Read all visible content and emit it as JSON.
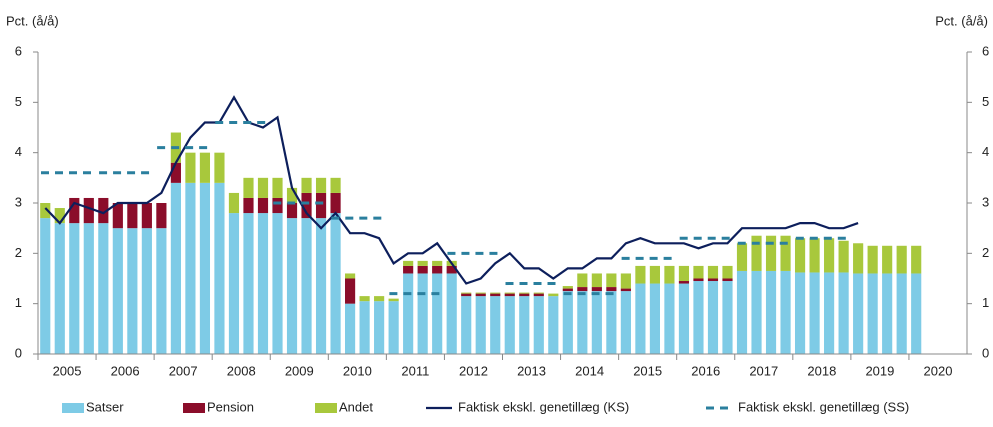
{
  "chart_data": {
    "type": "stacked_bar_line",
    "y_label": "Pct. (å/å)",
    "categories": [
      "2005",
      "2006",
      "2007",
      "2008",
      "2009",
      "2010",
      "2011",
      "2012",
      "2013",
      "2014",
      "2015",
      "2016",
      "2017",
      "2018",
      "2019",
      "2020"
    ],
    "ylim": [
      0,
      6
    ],
    "yticks": [
      0,
      1,
      2,
      3,
      4,
      5,
      6
    ],
    "grid": false,
    "legend": "bottom",
    "series": [
      {
        "name": "Satser",
        "kind": "bar",
        "color": "#7ecbe6",
        "values": [
          [
            2.7,
            2.6,
            2.6,
            2.6
          ],
          [
            2.6,
            2.5,
            2.5,
            2.5
          ],
          [
            2.5,
            3.4,
            3.4,
            3.4
          ],
          [
            3.4,
            2.8,
            2.8,
            2.8
          ],
          [
            2.8,
            2.7,
            2.7,
            2.7
          ],
          [
            2.8,
            1.0,
            1.05,
            1.05
          ],
          [
            1.05,
            1.6,
            1.6,
            1.6
          ],
          [
            1.6,
            1.15,
            1.15,
            1.15
          ],
          [
            1.15,
            1.15,
            1.15,
            1.15
          ],
          [
            1.25,
            1.25,
            1.25,
            1.25
          ],
          [
            1.25,
            1.4,
            1.4,
            1.4
          ],
          [
            1.4,
            1.45,
            1.45,
            1.45
          ],
          [
            1.65,
            1.65,
            1.65,
            1.65
          ],
          [
            1.62,
            1.62,
            1.62,
            1.62
          ],
          [
            1.6,
            1.6,
            1.6,
            1.6
          ],
          [
            1.6,
            null,
            null,
            null
          ]
        ]
      },
      {
        "name": "Pension",
        "kind": "bar",
        "color": "#8b0d2a",
        "values": [
          [
            0,
            0,
            0.5,
            0.5
          ],
          [
            0.5,
            0.5,
            0.5,
            0.5
          ],
          [
            0.5,
            0.4,
            0,
            0
          ],
          [
            0,
            0,
            0.3,
            0.3
          ],
          [
            0.3,
            0.3,
            0.5,
            0.5
          ],
          [
            0.4,
            0.5,
            0,
            0
          ],
          [
            0,
            0.15,
            0.15,
            0.15
          ],
          [
            0.15,
            0.05,
            0.05,
            0.05
          ],
          [
            0.05,
            0.05,
            0.05,
            0
          ],
          [
            0.05,
            0.08,
            0.08,
            0.08
          ],
          [
            0.05,
            0,
            0,
            0
          ],
          [
            0.05,
            0.05,
            0.05,
            0.05
          ],
          [
            0,
            0,
            0,
            0
          ],
          [
            0,
            0,
            0,
            0
          ],
          [
            0,
            0,
            0,
            0
          ],
          [
            0,
            null,
            null,
            null
          ]
        ]
      },
      {
        "name": "Andet",
        "kind": "bar",
        "color": "#a8c83c",
        "values": [
          [
            0.3,
            0.3,
            0,
            0
          ],
          [
            0,
            0,
            0,
            0
          ],
          [
            0,
            0.6,
            0.6,
            0.6
          ],
          [
            0.6,
            0.4,
            0.4,
            0.4
          ],
          [
            0.4,
            0.3,
            0.3,
            0.3
          ],
          [
            0.3,
            0.1,
            0.1,
            0.1
          ],
          [
            0.05,
            0.1,
            0.1,
            0.1
          ],
          [
            0.1,
            0.02,
            0.02,
            0.02
          ],
          [
            0.02,
            0.02,
            0.02,
            0.05
          ],
          [
            0.05,
            0.27,
            0.27,
            0.27
          ],
          [
            0.3,
            0.35,
            0.35,
            0.35
          ],
          [
            0.3,
            0.25,
            0.25,
            0.25
          ],
          [
            0.55,
            0.7,
            0.7,
            0.7
          ],
          [
            0.68,
            0.68,
            0.68,
            0.63
          ],
          [
            0.6,
            0.55,
            0.55,
            0.55
          ],
          [
            0.55,
            null,
            null,
            null
          ]
        ]
      },
      {
        "name": "Faktisk ekskl. genetillæg (KS)",
        "kind": "line",
        "color": "#0d1f5c",
        "values": [
          [
            2.9,
            2.6,
            3.0,
            2.9
          ],
          [
            2.8,
            3.0,
            3.0,
            3.0
          ],
          [
            3.2,
            3.8,
            4.3,
            4.6
          ],
          [
            4.6,
            5.1,
            4.6,
            4.5
          ],
          [
            4.7,
            3.3,
            2.8,
            2.5
          ],
          [
            2.8,
            2.4,
            2.4,
            2.3
          ],
          [
            1.8,
            2.0,
            2.0,
            2.2
          ],
          [
            1.8,
            1.4,
            1.5,
            1.8
          ],
          [
            2.0,
            1.7,
            1.7,
            1.5
          ],
          [
            1.7,
            1.7,
            1.9,
            1.9
          ],
          [
            2.2,
            2.3,
            2.2,
            2.2
          ],
          [
            2.2,
            2.1,
            2.2,
            2.2
          ],
          [
            2.5,
            2.5,
            2.5,
            2.5
          ],
          [
            2.6,
            2.6,
            2.5,
            2.5
          ],
          [
            2.6,
            null,
            null,
            null
          ],
          [
            null,
            null,
            null,
            null
          ]
        ]
      },
      {
        "name": "Faktisk ekskl. genetillæg (SS)",
        "kind": "annual_dash",
        "color": "#2a7f9e",
        "values": [
          3.6,
          3.6,
          4.1,
          4.6,
          3.0,
          2.7,
          1.2,
          2.0,
          1.4,
          1.2,
          1.9,
          2.3,
          2.2,
          2.3,
          null,
          null
        ]
      }
    ]
  }
}
